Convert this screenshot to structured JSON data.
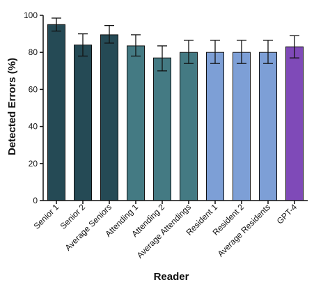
{
  "chart_data": {
    "type": "bar",
    "xlabel": "Reader",
    "ylabel": "Detected Errors (%)",
    "ylim": [
      0,
      100
    ],
    "yticks": [
      0,
      20,
      40,
      60,
      80,
      100
    ],
    "categories": [
      "Senior 1",
      "Senior 2",
      "Average Seniors",
      "Attending 1",
      "Attending 2",
      "Average Attendings",
      "Resident 1",
      "Resident 2",
      "Average Residents",
      "GPT-4"
    ],
    "values": [
      95,
      84,
      89.5,
      83.5,
      77,
      80,
      80,
      80,
      80,
      83
    ],
    "error_low": [
      91.5,
      78,
      85,
      78,
      70,
      74,
      74,
      74,
      74,
      77
    ],
    "error_high": [
      98.5,
      90,
      94.5,
      89.5,
      83.5,
      86.5,
      86.5,
      86.5,
      86.5,
      89
    ],
    "colors": [
      "#254a55",
      "#254a55",
      "#254a55",
      "#447a83",
      "#447a83",
      "#447a83",
      "#7d9fd6",
      "#7d9fd6",
      "#7d9fd6",
      "#7f4ab8"
    ],
    "grid": false,
    "legend": "none"
  }
}
